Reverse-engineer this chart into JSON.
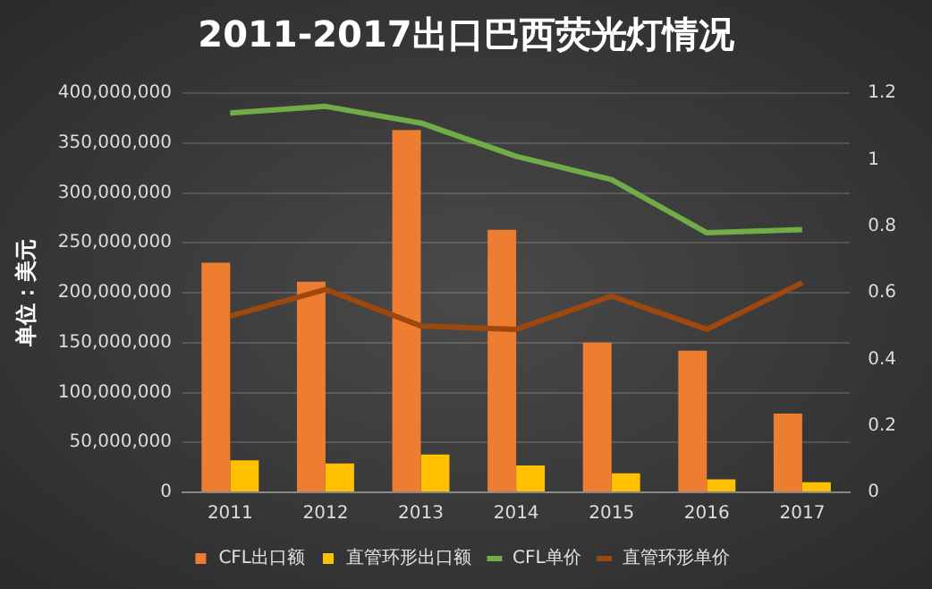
{
  "chart_data": {
    "type": "bar",
    "title": "2011-2017出口巴西荧光灯情况",
    "ylabel": "单位：美元",
    "categories": [
      "2011",
      "2012",
      "2013",
      "2014",
      "2015",
      "2016",
      "2017"
    ],
    "series": [
      {
        "name": "CFL出口额",
        "color": "#ed7d31",
        "values": [
          230000000,
          211000000,
          363000000,
          263000000,
          150000000,
          142000000,
          79000000
        ]
      },
      {
        "name": "直管环形出口额",
        "color": "#ffc000",
        "values": [
          32000000,
          29000000,
          38000000,
          27000000,
          19000000,
          13000000,
          10000000
        ]
      },
      {
        "name": "CFL单价",
        "type": "line",
        "axis": "y2",
        "color": "#70ad47",
        "values": [
          1.14,
          1.16,
          1.11,
          1.01,
          0.94,
          0.78,
          0.79
        ]
      },
      {
        "name": "直管环形单价",
        "type": "line",
        "axis": "y2",
        "color": "#9e480e",
        "values": [
          0.53,
          0.61,
          0.5,
          0.49,
          0.59,
          0.49,
          0.63
        ]
      }
    ],
    "ylim": [
      0,
      400000000
    ],
    "yticks": [
      {
        "value": 0,
        "label": "0"
      },
      {
        "value": 50000000,
        "label": "50,000,000"
      },
      {
        "value": 100000000,
        "label": "100,000,000"
      },
      {
        "value": 150000000,
        "label": "150,000,000"
      },
      {
        "value": 200000000,
        "label": "200,000,000"
      },
      {
        "value": 250000000,
        "label": "250,000,000"
      },
      {
        "value": 300000000,
        "label": "300,000,000"
      },
      {
        "value": 350000000,
        "label": "350,000,000"
      },
      {
        "value": 400000000,
        "label": "400,000,000"
      }
    ],
    "y2lim": [
      0,
      1.2
    ],
    "y2ticks": [
      0,
      0.2,
      0.4,
      0.6,
      0.8,
      1,
      1.2
    ],
    "grid": "y",
    "legend": "bottom"
  }
}
